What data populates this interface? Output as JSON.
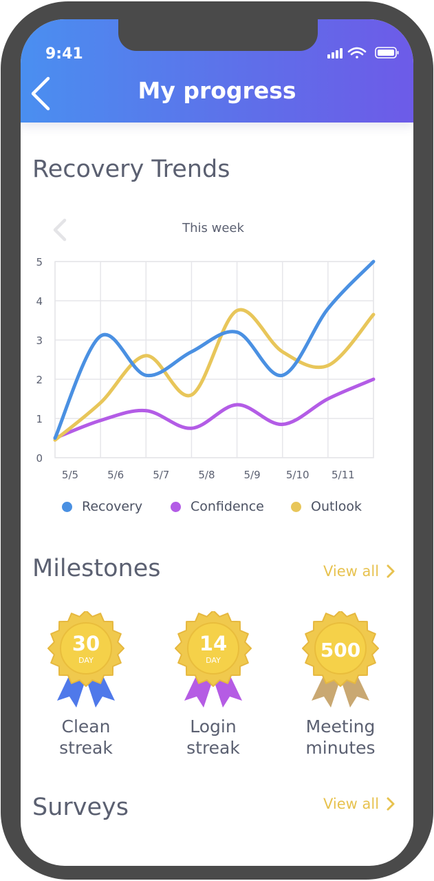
{
  "status_bar": {
    "time": "9:41"
  },
  "header": {
    "title": "My progress",
    "back_icon": "chevron-left-icon"
  },
  "trends": {
    "title": "Recovery Trends",
    "period_label": "This week"
  },
  "chart_data": {
    "type": "line",
    "x": [
      "5/5",
      "5/6",
      "5/7",
      "5/8",
      "5/9",
      "5/10",
      "5/11",
      ""
    ],
    "ylim": [
      0,
      5
    ],
    "yticks": [
      0,
      1,
      2,
      3,
      4,
      5
    ],
    "grid": true,
    "legend_position": "bottom",
    "series": [
      {
        "name": "Recovery",
        "color": "#4a90e2",
        "values": [
          0.5,
          3.1,
          2.1,
          2.7,
          3.2,
          2.1,
          3.8,
          5.0
        ]
      },
      {
        "name": "Confidence",
        "color": "#b35ce6",
        "values": [
          0.5,
          0.95,
          1.2,
          0.75,
          1.35,
          0.85,
          1.5,
          2.0
        ]
      },
      {
        "name": "Outlook",
        "color": "#e8c65a",
        "values": [
          0.45,
          1.4,
          2.6,
          1.6,
          3.75,
          2.7,
          2.35,
          3.65
        ]
      }
    ]
  },
  "milestones": {
    "title": "Milestones",
    "view_all": "View all",
    "badges": [
      {
        "number": "30",
        "unit": "DAY",
        "label_line1": "Clean",
        "label_line2": "streak",
        "ribbon_color": "#4f79ea",
        "ribbon_dark": "#3d64d4"
      },
      {
        "number": "14",
        "unit": "DAY",
        "label_line1": "Login",
        "label_line2": "streak",
        "ribbon_color": "#b55ce4",
        "ribbon_dark": "#9a45cc"
      },
      {
        "number": "500",
        "unit": "",
        "label_line1": "Meeting",
        "label_line2": "minutes",
        "ribbon_color": "#c9a872",
        "ribbon_dark": "#b4925d"
      }
    ]
  },
  "surveys": {
    "title": "Surveys",
    "view_all": "View all"
  }
}
